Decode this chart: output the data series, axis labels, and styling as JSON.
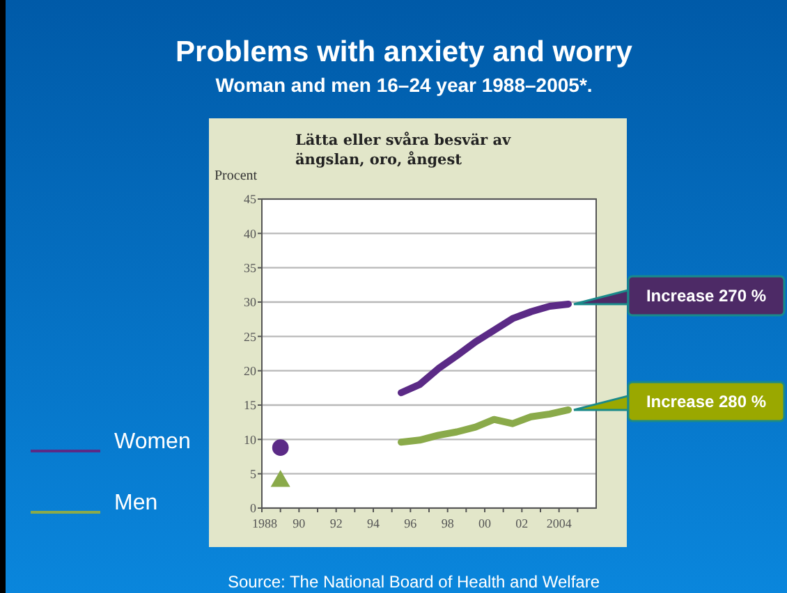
{
  "chart_data": {
    "type": "line",
    "title": "Problems with anxiety and worry",
    "subtitle": "Woman and men 16–24 year 1988–2005*.",
    "ylabel": "Procent",
    "annotations": [
      "Lätta eller svåra besvär av ängslan, oro, ångest",
      {
        "text": "Increase 270 %",
        "x": 2004.5,
        "y": 29.7
      },
      {
        "text": "Increase 280 %",
        "x": 2004.5,
        "y": 14.3
      },
      "Source: The National Board of Health and Welfare"
    ],
    "xlim": [
      1988,
      2006
    ],
    "xticks": [
      {
        "value": 1988,
        "label": "1988"
      },
      {
        "value": 1989,
        "label": null
      },
      {
        "value": 1990,
        "label": "90"
      },
      {
        "value": 1991,
        "label": null
      },
      {
        "value": 1992,
        "label": "92"
      },
      {
        "value": 1993,
        "label": null
      },
      {
        "value": 1994,
        "label": "94"
      },
      {
        "value": 1995,
        "label": null
      },
      {
        "value": 1996,
        "label": "96"
      },
      {
        "value": 1997,
        "label": null
      },
      {
        "value": 1998,
        "label": "98"
      },
      {
        "value": 1999,
        "label": null
      },
      {
        "value": 2000,
        "label": "00"
      },
      {
        "value": 2001,
        "label": null
      },
      {
        "value": 2002,
        "label": "02"
      },
      {
        "value": 2003,
        "label": null
      },
      {
        "value": 2004,
        "label": "2004"
      },
      {
        "value": 2005,
        "label": null
      }
    ],
    "ylim": [
      0,
      45
    ],
    "yticks": [
      0,
      5,
      10,
      15,
      20,
      25,
      30,
      35,
      40,
      45
    ],
    "grid": "y",
    "legend": "left",
    "marker": "none",
    "line_style": "solid",
    "series": [
      {
        "name": "Women",
        "color": "#5b2a86",
        "x": [
          1995.5,
          1996.5,
          1997.5,
          1998.5,
          1999.5,
          2000.5,
          2001.5,
          2002.5,
          2003.5,
          2004.5
        ],
        "values": [
          16.8,
          18.0,
          20.3,
          22.2,
          24.2,
          25.9,
          27.6,
          28.6,
          29.4,
          29.7
        ]
      },
      {
        "name": "Men",
        "color": "#8aaa4a",
        "x": [
          1995.5,
          1996.5,
          1997.5,
          1998.5,
          1999.5,
          2000.5,
          2001.5,
          2002.5,
          2003.5,
          2004.5
        ],
        "values": [
          9.6,
          9.9,
          10.6,
          11.1,
          11.8,
          12.9,
          12.3,
          13.3,
          13.7,
          14.3
        ]
      },
      {
        "type": "scatter",
        "marker": "circle",
        "color": "#5b2a86",
        "x": [
          1989
        ],
        "values": [
          8.8
        ]
      },
      {
        "type": "scatter",
        "marker": "triangle",
        "color": "#8aaa4a",
        "x": [
          1989
        ],
        "values": [
          3.9
        ]
      }
    ]
  }
}
